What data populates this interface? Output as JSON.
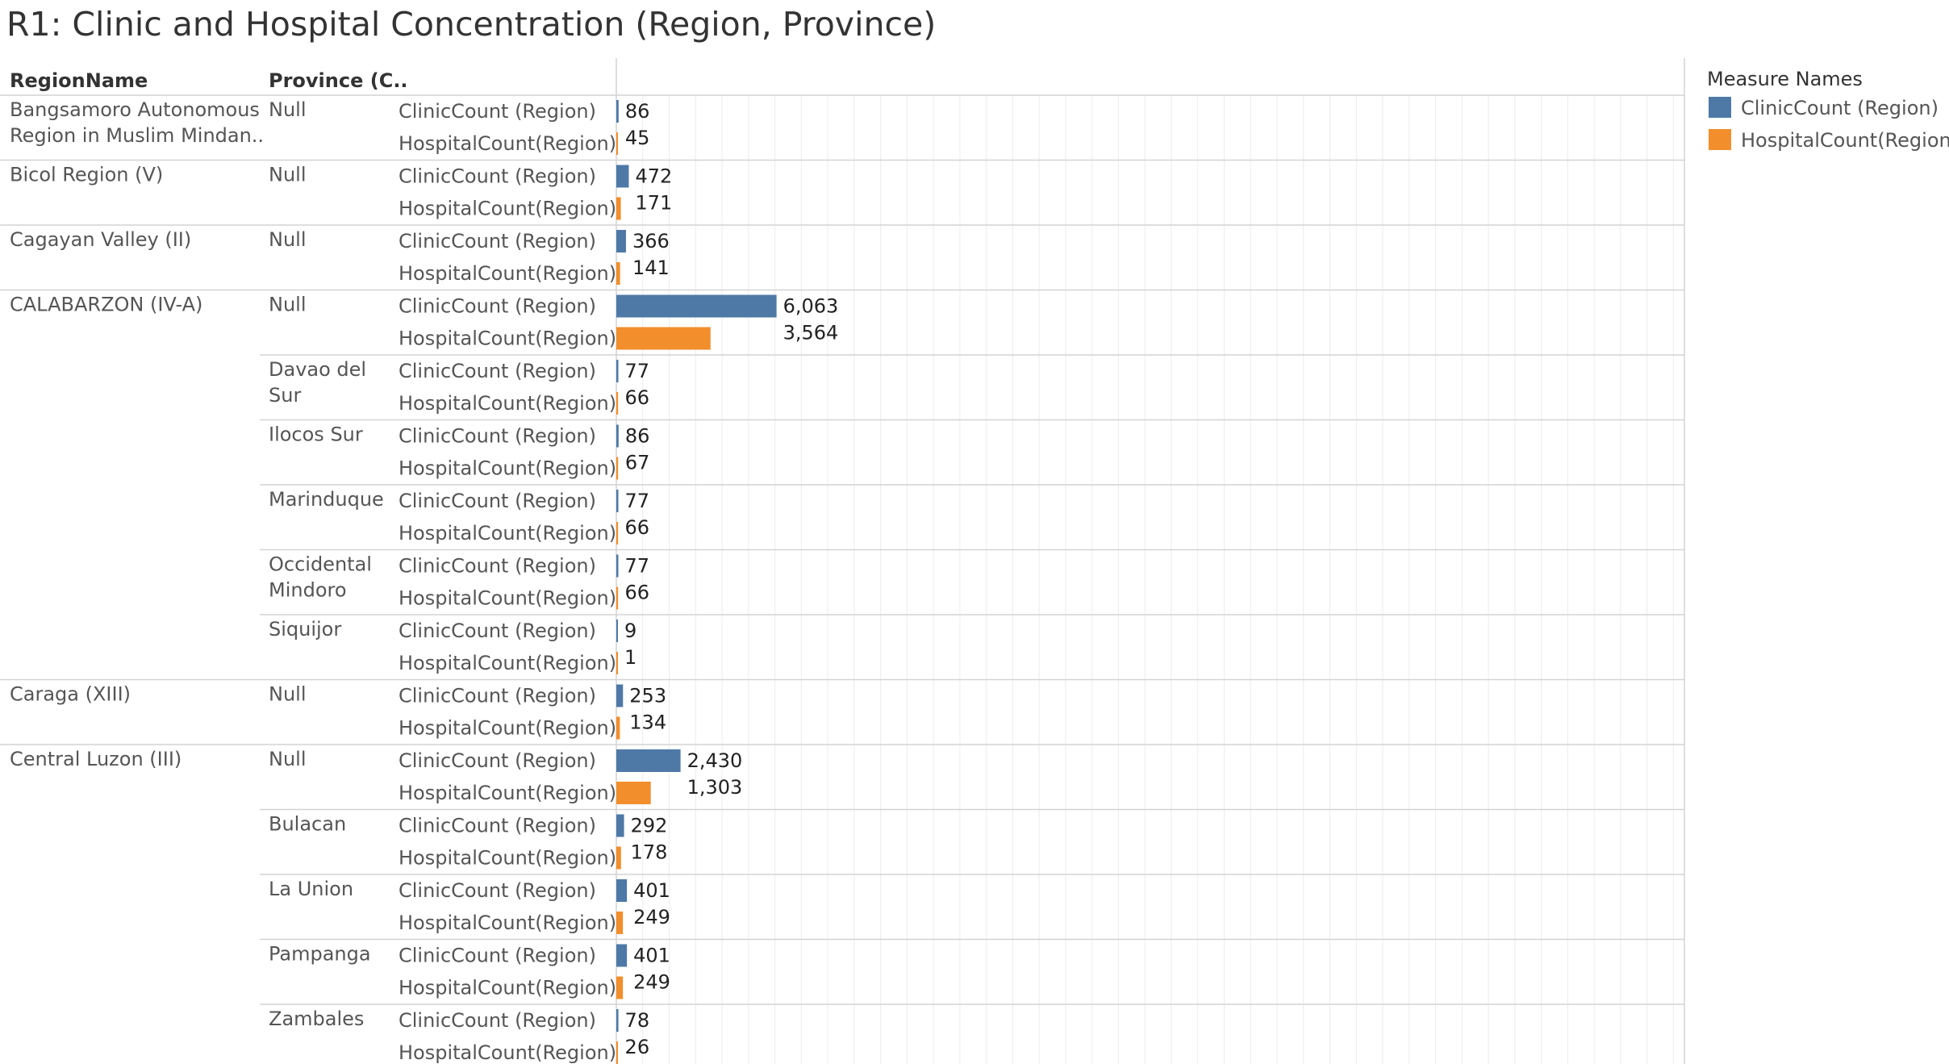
{
  "title": "R1: Clinic and Hospital Concentration (Region, Province)",
  "headers": {
    "region": "RegionName",
    "province": "Province (C.."
  },
  "legend": {
    "title": "Measure Names",
    "items": [
      {
        "label": "ClinicCount (Region)",
        "color": "#4e79a7"
      },
      {
        "label": "HospitalCount(Region)",
        "color": "#f28e2b"
      }
    ]
  },
  "measure_labels": [
    "ClinicCount (Region)",
    "HospitalCount(Region)"
  ],
  "chart_data": {
    "type": "bar",
    "orientation": "horizontal",
    "title": "R1: Clinic and Hospital Concentration (Region, Province)",
    "xlim": [
      0,
      40000
    ],
    "grid": true,
    "legend_position": "top-right",
    "rows": [
      {
        "region": [
          "Bangsamoro Autonomous",
          "Region in Muslim Mindan.."
        ],
        "province": [
          "Null"
        ],
        "clinic": 86,
        "hospital": 45,
        "clinic_label": "86",
        "hospital_label": "45"
      },
      {
        "region": [
          "Bicol Region (V)"
        ],
        "province": [
          "Null"
        ],
        "clinic": 472,
        "hospital": 171,
        "clinic_label": "472",
        "hospital_label": "171"
      },
      {
        "region": [
          "Cagayan Valley (II)"
        ],
        "province": [
          "Null"
        ],
        "clinic": 366,
        "hospital": 141,
        "clinic_label": "366",
        "hospital_label": "141"
      },
      {
        "region": [
          "CALABARZON (IV-A)"
        ],
        "province": [
          "Null"
        ],
        "clinic": 6063,
        "hospital": 3564,
        "clinic_label": "6,063",
        "hospital_label": "3,564"
      },
      {
        "region": [],
        "province": [
          "Davao del",
          "Sur"
        ],
        "clinic": 77,
        "hospital": 66,
        "clinic_label": "77",
        "hospital_label": "66"
      },
      {
        "region": [],
        "province": [
          "Ilocos Sur"
        ],
        "clinic": 86,
        "hospital": 67,
        "clinic_label": "86",
        "hospital_label": "67"
      },
      {
        "region": [],
        "province": [
          "Marinduque"
        ],
        "clinic": 77,
        "hospital": 66,
        "clinic_label": "77",
        "hospital_label": "66"
      },
      {
        "region": [],
        "province": [
          "Occidental",
          "Mindoro"
        ],
        "clinic": 77,
        "hospital": 66,
        "clinic_label": "77",
        "hospital_label": "66"
      },
      {
        "region": [],
        "province": [
          "Siquijor"
        ],
        "clinic": 9,
        "hospital": 1,
        "clinic_label": "9",
        "hospital_label": "1"
      },
      {
        "region": [
          "Caraga (XIII)"
        ],
        "province": [
          "Null"
        ],
        "clinic": 253,
        "hospital": 134,
        "clinic_label": "253",
        "hospital_label": "134"
      },
      {
        "region": [
          "Central Luzon (III)"
        ],
        "province": [
          "Null"
        ],
        "clinic": 2430,
        "hospital": 1303,
        "clinic_label": "2,430",
        "hospital_label": "1,303"
      },
      {
        "region": [],
        "province": [
          "Bulacan"
        ],
        "clinic": 292,
        "hospital": 178,
        "clinic_label": "292",
        "hospital_label": "178"
      },
      {
        "region": [],
        "province": [
          "La Union"
        ],
        "clinic": 401,
        "hospital": 249,
        "clinic_label": "401",
        "hospital_label": "249"
      },
      {
        "region": [],
        "province": [
          "Pampanga"
        ],
        "clinic": 401,
        "hospital": 249,
        "clinic_label": "401",
        "hospital_label": "249"
      },
      {
        "region": [],
        "province": [
          "Zambales"
        ],
        "clinic": 78,
        "hospital": 26,
        "clinic_label": "78",
        "hospital_label": "26"
      }
    ]
  }
}
